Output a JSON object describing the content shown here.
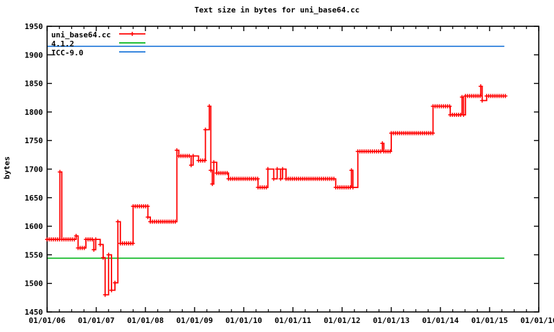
{
  "title": "Text size in bytes for uni_base64.cc",
  "ylabel": "bytes",
  "colors": {
    "series": "#ff0000",
    "gcc_line": "#00b418",
    "icc_line": "#1a74d9",
    "axis": "#000000",
    "background": "#ffffff",
    "text": "#000000"
  },
  "legend": {
    "items": [
      {
        "label": "uni_base64.cc",
        "color": "#ff0000",
        "marker": "plus"
      },
      {
        "label": "4.1.2",
        "color": "#00b418",
        "marker": "none"
      },
      {
        "label": "ICC-9.0",
        "color": "#1a74d9",
        "marker": "none"
      }
    ]
  },
  "chart_data": {
    "type": "line",
    "title": "Text size in bytes for uni_base64.cc",
    "xlabel": "",
    "ylabel": "bytes",
    "ylim": [
      1450,
      1950
    ],
    "xlim_years": [
      2006,
      2016
    ],
    "grid": false,
    "legend_position": "top-left",
    "y_ticks": [
      1450,
      1500,
      1550,
      1600,
      1650,
      1700,
      1750,
      1800,
      1850,
      1900,
      1950
    ],
    "x_tick_labels": [
      "01/01/06",
      "01/01/07",
      "01/01/08",
      "01/01/09",
      "01/01/10",
      "01/01/11",
      "01/01/12",
      "01/01/13",
      "01/01/14",
      "01/01/15",
      "01/01/16"
    ],
    "x_minor_per_year": 4,
    "series": [
      {
        "name": "uni_base64.cc",
        "style": "step-with-plus-markers",
        "color": "#ff0000",
        "points": [
          [
            2006.0,
            1577
          ],
          [
            2006.26,
            1695
          ],
          [
            2006.3,
            1577
          ],
          [
            2006.59,
            1583
          ],
          [
            2006.63,
            1562
          ],
          [
            2006.79,
            1577
          ],
          [
            2006.95,
            1559
          ],
          [
            2006.99,
            1577
          ],
          [
            2007.08,
            1568
          ],
          [
            2007.14,
            1545
          ],
          [
            2007.18,
            1480
          ],
          [
            2007.25,
            1550
          ],
          [
            2007.31,
            1488
          ],
          [
            2007.38,
            1501
          ],
          [
            2007.44,
            1608
          ],
          [
            2007.49,
            1570
          ],
          [
            2007.75,
            1635
          ],
          [
            2008.05,
            1616
          ],
          [
            2008.1,
            1608
          ],
          [
            2008.64,
            1733
          ],
          [
            2008.68,
            1723
          ],
          [
            2008.93,
            1707
          ],
          [
            2008.97,
            1723
          ],
          [
            2009.08,
            1715
          ],
          [
            2009.22,
            1769
          ],
          [
            2009.3,
            1810
          ],
          [
            2009.33,
            1698
          ],
          [
            2009.36,
            1674
          ],
          [
            2009.39,
            1712
          ],
          [
            2009.45,
            1693
          ],
          [
            2009.69,
            1683
          ],
          [
            2010.29,
            1668
          ],
          [
            2010.49,
            1700
          ],
          [
            2010.61,
            1683
          ],
          [
            2010.68,
            1700
          ],
          [
            2010.75,
            1683
          ],
          [
            2010.79,
            1700
          ],
          [
            2010.86,
            1683
          ],
          [
            2011.87,
            1668
          ],
          [
            2012.19,
            1698
          ],
          [
            2012.22,
            1668
          ],
          [
            2012.32,
            1731
          ],
          [
            2012.82,
            1745
          ],
          [
            2012.85,
            1731
          ],
          [
            2013.0,
            1763
          ],
          [
            2013.85,
            1810
          ],
          [
            2014.2,
            1795
          ],
          [
            2014.44,
            1826
          ],
          [
            2014.47,
            1795
          ],
          [
            2014.51,
            1828
          ],
          [
            2014.82,
            1845
          ],
          [
            2014.85,
            1820
          ],
          [
            2014.94,
            1828
          ],
          [
            2015.32,
            1828
          ]
        ]
      },
      {
        "name": "4.1.2",
        "style": "hline",
        "color": "#00b418",
        "y": 1544,
        "x_start": 2006.0,
        "x_end": 2015.3
      },
      {
        "name": "ICC-9.0",
        "style": "hline",
        "color": "#1a74d9",
        "y": 1915,
        "x_start": 2006.0,
        "x_end": 2015.3
      }
    ]
  }
}
